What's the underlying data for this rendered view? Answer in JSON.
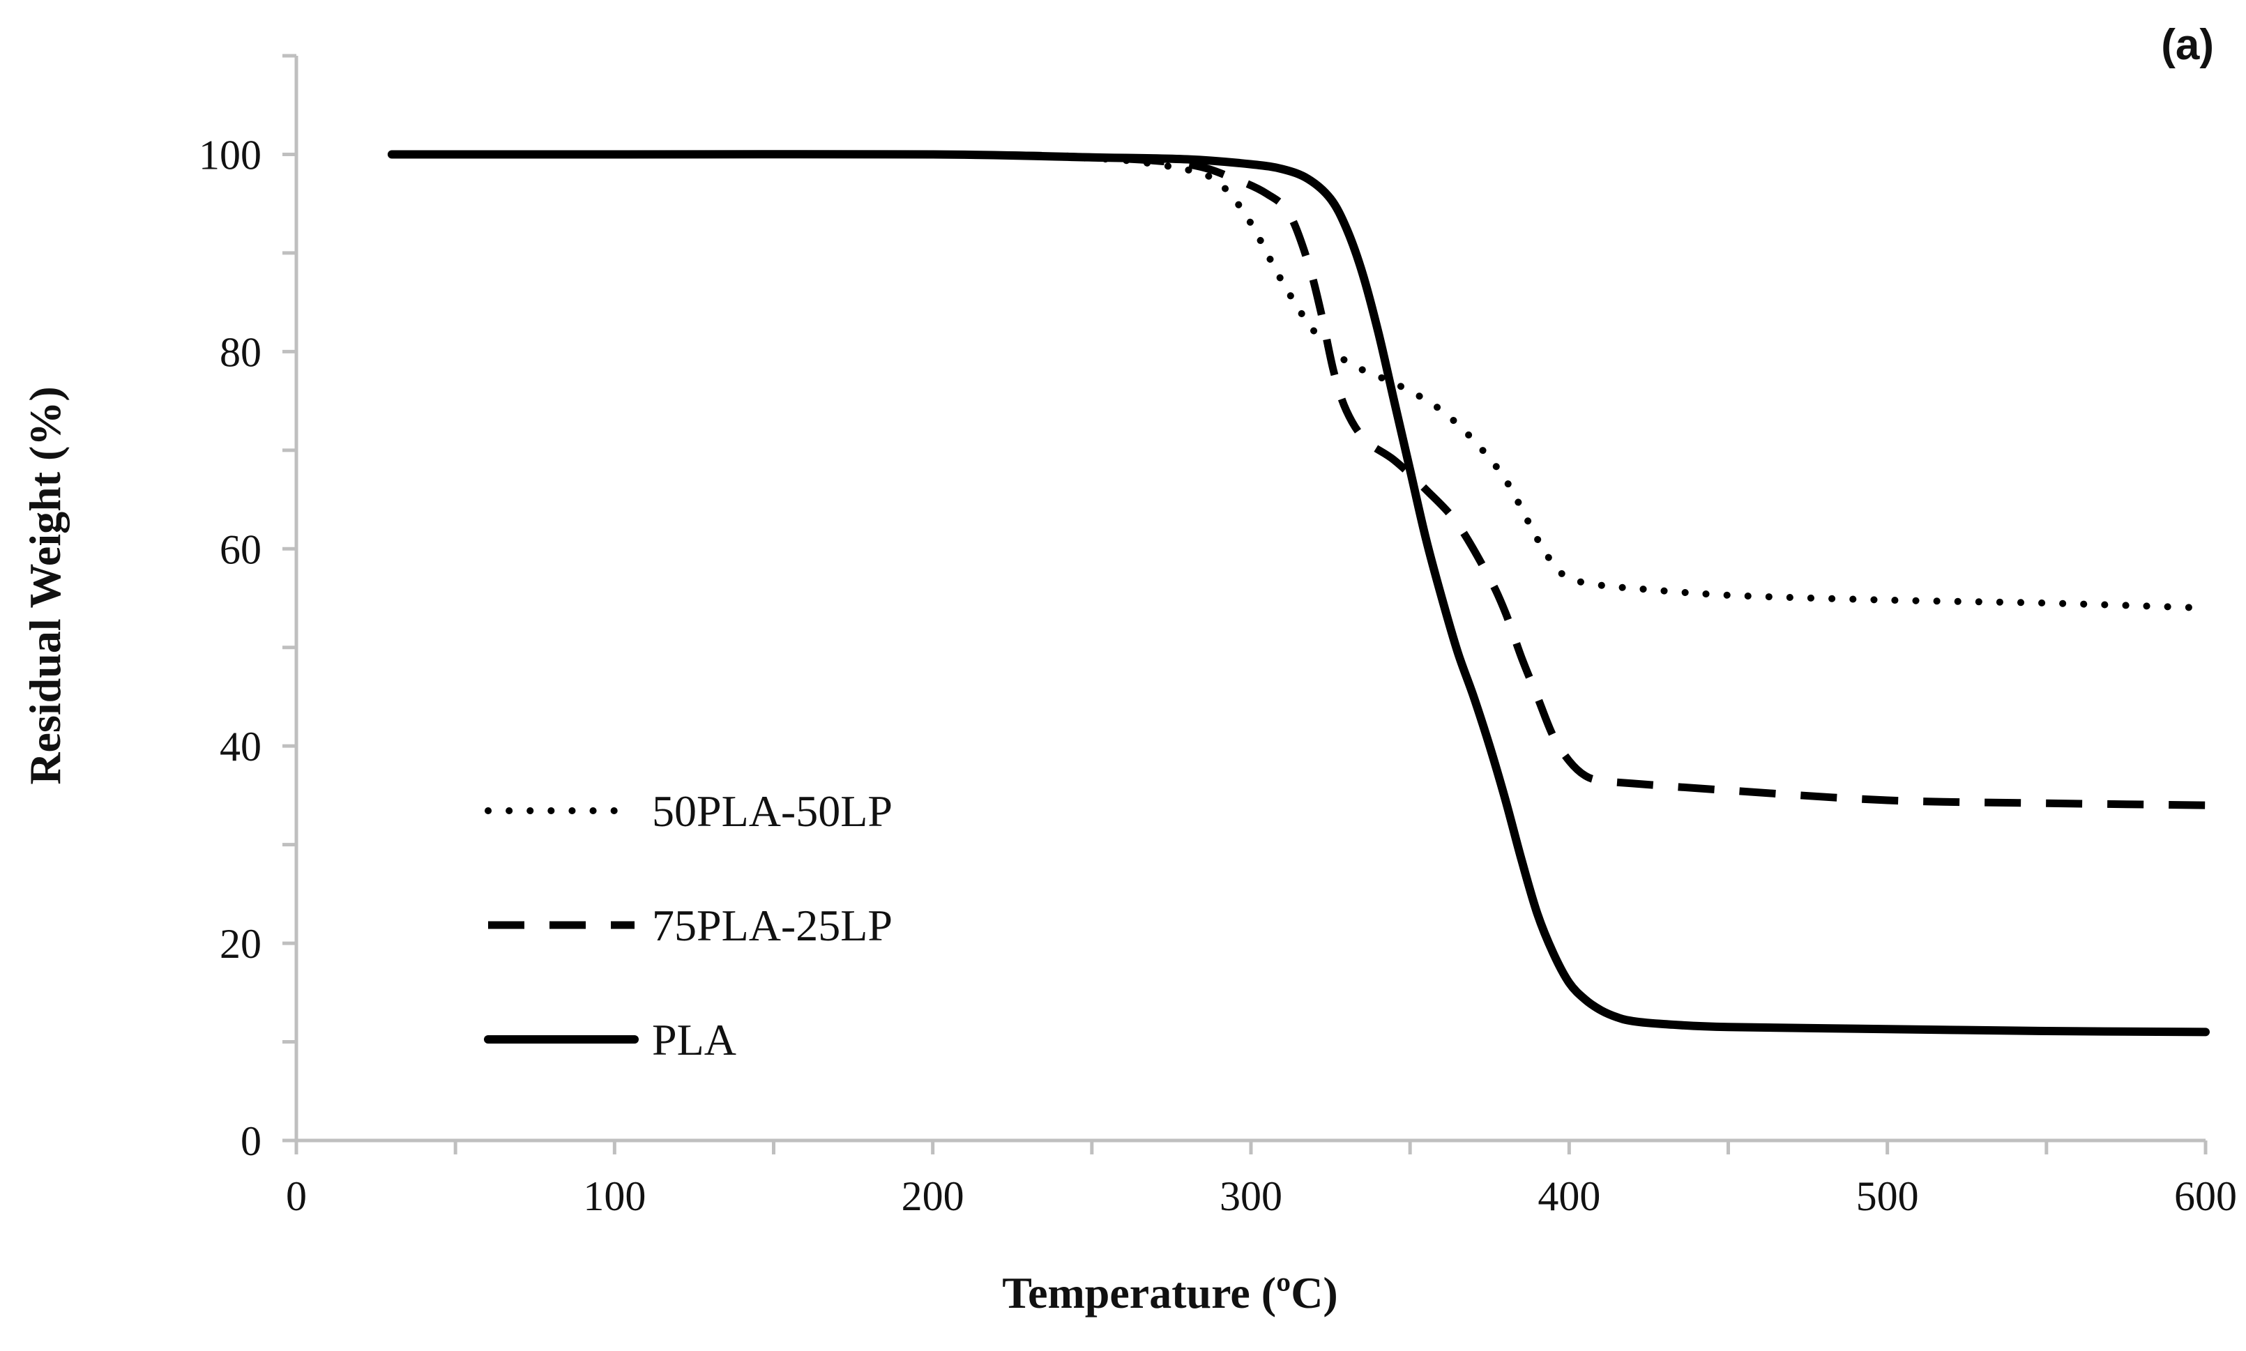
{
  "chart_data": {
    "type": "line",
    "panel_label": "(a)",
    "xlabel": "Temperature (ºC)",
    "ylabel": "Residual Weight (%)",
    "xlim": [
      0,
      600
    ],
    "ylim": [
      0,
      110
    ],
    "x_ticks": [
      0,
      100,
      200,
      300,
      400,
      500,
      600
    ],
    "y_ticks": [
      0,
      20,
      40,
      60,
      80,
      100
    ],
    "grid": false,
    "legend_position": "bottom-left",
    "series": [
      {
        "name": "50PLA-50LP",
        "style": "dotted",
        "x": [
          30,
          100,
          200,
          250,
          270,
          285,
          292,
          300,
          310,
          320,
          330,
          340,
          350,
          360,
          370,
          380,
          390,
          395,
          400,
          410,
          420,
          450,
          500,
          550,
          600
        ],
        "y": [
          100,
          100,
          100,
          99.6,
          99,
          98,
          96.5,
          93,
          87,
          82,
          79,
          77.5,
          76,
          74,
          71,
          67,
          61,
          58.5,
          57,
          56.3,
          56,
          55.3,
          54.8,
          54.5,
          54
        ]
      },
      {
        "name": "75PLA-25LP",
        "style": "dashed",
        "x": [
          30,
          100,
          200,
          250,
          280,
          295,
          305,
          312,
          318,
          322,
          326,
          330,
          336,
          345,
          355,
          365,
          375,
          380,
          385,
          390,
          395,
          400,
          405,
          410,
          420,
          450,
          500,
          550,
          600
        ],
        "y": [
          100,
          100,
          100,
          99.7,
          99,
          97.5,
          96,
          94,
          89,
          84,
          78,
          74,
          71,
          69,
          66,
          62.5,
          57,
          53.5,
          49,
          45,
          41,
          38.5,
          37,
          36.5,
          36.2,
          35.5,
          34.5,
          34.2,
          34
        ]
      },
      {
        "name": "PLA",
        "style": "solid",
        "x": [
          30,
          100,
          200,
          250,
          280,
          300,
          310,
          318,
          325,
          330,
          335,
          340,
          345,
          350,
          355,
          360,
          365,
          370,
          375,
          380,
          385,
          390,
          395,
          400,
          405,
          410,
          415,
          420,
          430,
          450,
          500,
          550,
          600
        ],
        "y": [
          100,
          100,
          100,
          99.7,
          99.5,
          99,
          98.5,
          97.5,
          95.5,
          92.5,
          88,
          82,
          75,
          68,
          61,
          55,
          49.5,
          45,
          40,
          34.5,
          28.5,
          23,
          19,
          16,
          14.3,
          13.2,
          12.5,
          12.1,
          11.8,
          11.5,
          11.3,
          11.1,
          11
        ]
      }
    ]
  }
}
